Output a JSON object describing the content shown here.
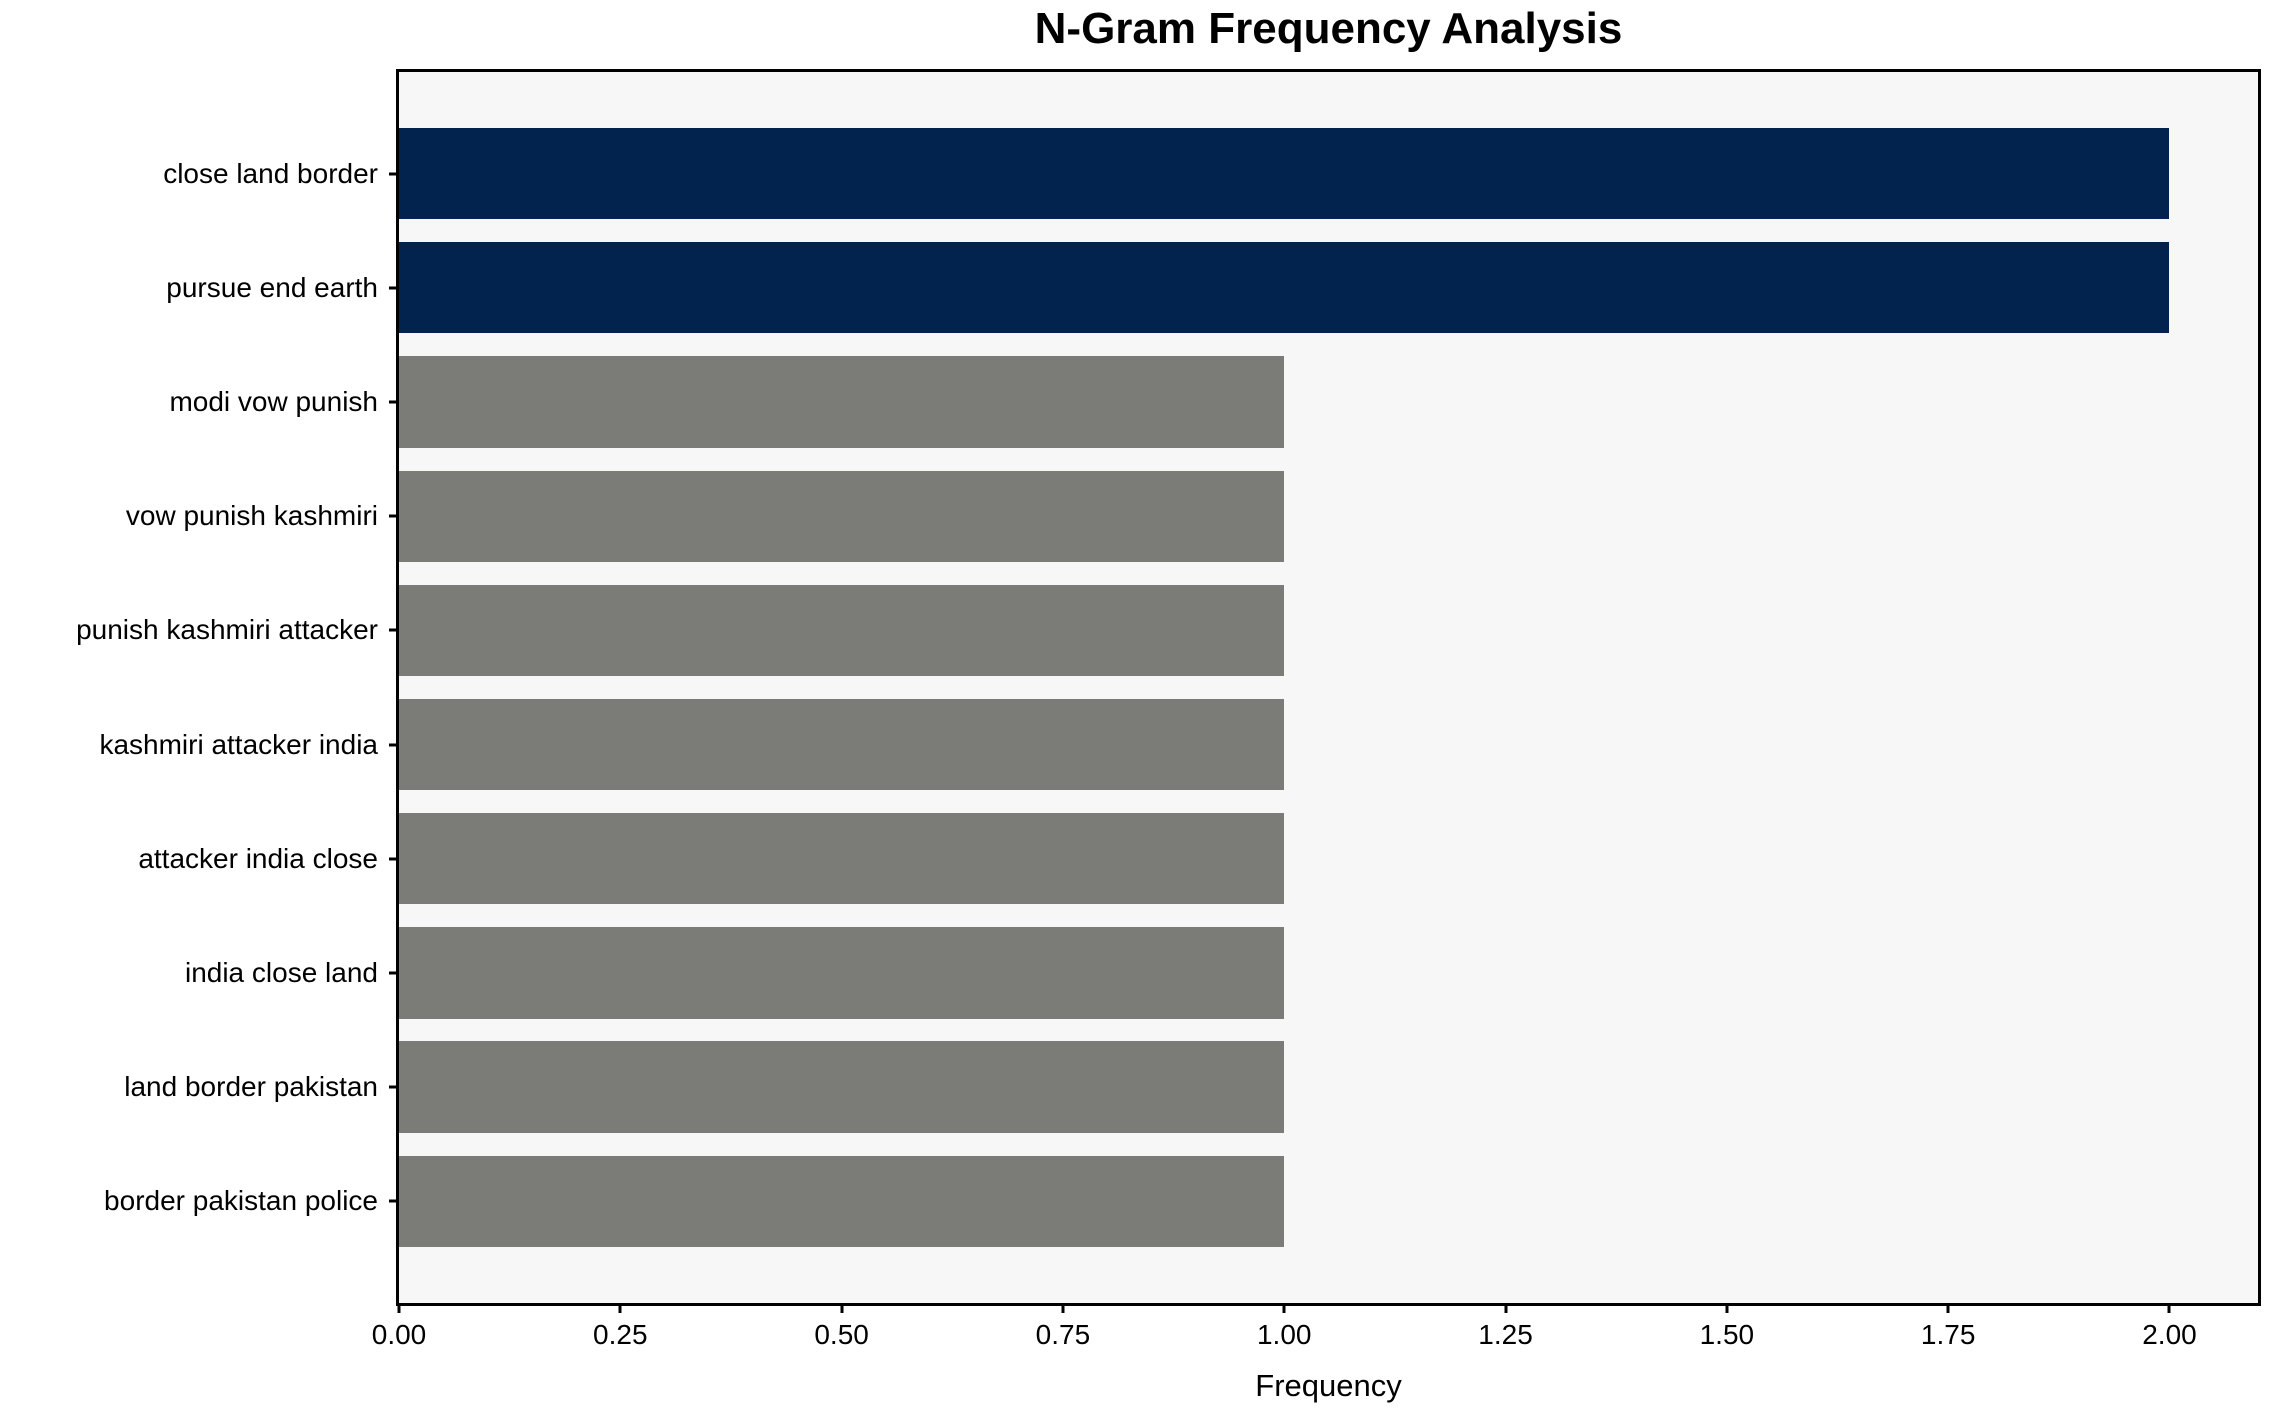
{
  "chart_data": {
    "type": "bar",
    "orientation": "horizontal",
    "title": "N-Gram Frequency Analysis",
    "xlabel": "Frequency",
    "ylabel": "",
    "categories": [
      "close land border",
      "pursue end earth",
      "modi vow punish",
      "vow punish kashmiri",
      "punish kashmiri attacker",
      "kashmiri attacker india",
      "attacker india close",
      "india close land",
      "land border pakistan",
      "border pakistan police"
    ],
    "values": [
      2,
      2,
      1,
      1,
      1,
      1,
      1,
      1,
      1,
      1
    ],
    "bar_colors": [
      "#02234d",
      "#02234d",
      "#7b7b78",
      "#7b7b78",
      "#7b7b78",
      "#7b7b78",
      "#7b7b78",
      "#7b7b78",
      "#7b7b78",
      "#7b7b78"
    ],
    "x_tick_labels": [
      "0.00",
      "0.25",
      "0.50",
      "0.75",
      "1.00",
      "1.25",
      "1.50",
      "1.75",
      "2.00"
    ],
    "x_tick_values": [
      0,
      0.25,
      0.5,
      0.75,
      1.0,
      1.25,
      1.5,
      1.75,
      2.0
    ],
    "xlim": [
      0,
      2.1
    ],
    "grid": false,
    "legend": "none",
    "colors": {
      "highlight_bar": "#02234d",
      "default_bar": "#7b7b78",
      "plot_background": "#f7f7f7",
      "figure_background": "#ffffff",
      "spine": "#000000",
      "text": "#000000"
    }
  }
}
